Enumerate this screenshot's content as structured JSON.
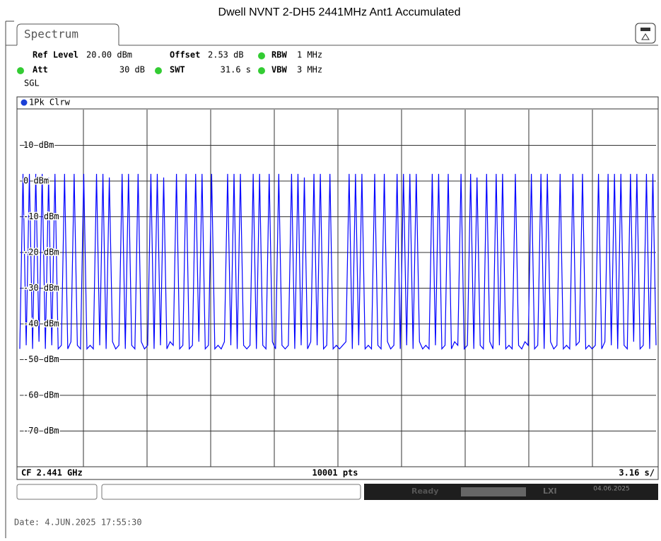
{
  "title": "Dwell NVNT 2-DH5 2441MHz Ant1 Accumulated",
  "tab": "Spectrum",
  "settings": {
    "ref_level_label": "Ref Level",
    "ref_level": "20.00 dBm",
    "offset_label": "Offset",
    "offset": "2.53 dB",
    "rbw_label": "RBW",
    "rbw": "1 MHz",
    "att_label": "Att",
    "att": "30 dB",
    "swt_label": "SWT",
    "swt": "31.6 s",
    "vbw_label": "VBW",
    "vbw": "3 MHz",
    "mode": "SGL"
  },
  "trace_label": "1Pk Clrw",
  "chart_data": {
    "type": "line",
    "color": "#0000ff",
    "ylim": [
      -80,
      20
    ],
    "yticks": [
      {
        "value": 10,
        "label": "10 dBm"
      },
      {
        "value": 0,
        "label": "0 dBm"
      },
      {
        "value": -10,
        "label": "-10 dBm"
      },
      {
        "value": -20,
        "label": "-20 dBm"
      },
      {
        "value": -30,
        "label": "-30 dBm"
      },
      {
        "value": -40,
        "label": "-40 dBm"
      },
      {
        "value": -50,
        "label": "-50 dBm"
      },
      {
        "value": -60,
        "label": "-60 dBm"
      },
      {
        "value": -70,
        "label": "-70 dBm"
      }
    ],
    "grid": true,
    "values": [
      -47,
      2,
      -46,
      2,
      -47,
      2,
      -45,
      2,
      -47,
      1,
      -46,
      2,
      -47,
      -46,
      2,
      -47,
      -45,
      2,
      -46,
      -47,
      2,
      -47,
      -46,
      -47,
      2,
      -46,
      2,
      -47,
      1,
      -45,
      -47,
      -46,
      2,
      -47,
      2,
      -46,
      -47,
      2,
      -45,
      -47,
      -46,
      2,
      -47,
      2,
      -46,
      1,
      -47,
      -45,
      -46,
      2,
      -47,
      -46,
      2,
      -47,
      -46,
      2,
      -45,
      2,
      -47,
      -46,
      2,
      -47,
      -46,
      -47,
      -45,
      2,
      -46,
      2,
      -47,
      2,
      -46,
      -47,
      -46,
      2,
      -47,
      2,
      -46,
      -47,
      2,
      -45,
      -47,
      2,
      -46,
      -47,
      -46,
      2,
      -47,
      2,
      -46,
      1,
      -47,
      -45,
      2,
      -46,
      2,
      -47,
      -46,
      2,
      -47,
      -46,
      -47,
      -46,
      -45,
      2,
      -47,
      2,
      -46,
      2,
      -47,
      -46,
      -47,
      2,
      -46,
      -47,
      2,
      -45,
      -47,
      -46,
      2,
      -47,
      2,
      -46,
      2,
      -47,
      2,
      -45,
      -47,
      -46,
      -47,
      2,
      -46,
      2,
      -47,
      -46,
      2,
      -47,
      -45,
      -46,
      2,
      -47,
      -46,
      2,
      -47,
      1,
      -46,
      -47,
      2,
      -45,
      -47,
      2,
      -46,
      2,
      -47,
      -46,
      -47,
      2,
      -46,
      -47,
      -45,
      -46,
      2,
      -47,
      -46,
      2,
      -47,
      2,
      -45,
      -47,
      -46,
      2,
      -47,
      -46,
      -47,
      2,
      -46,
      -45,
      2,
      -47,
      -46,
      -47,
      -46,
      2,
      -47,
      -45,
      2,
      -46,
      2,
      -47,
      2,
      -46,
      -47,
      2,
      -45,
      2,
      -47,
      -46,
      2,
      -47,
      2,
      -46
    ]
  },
  "footer": {
    "center_freq": "CF 2.441 GHz",
    "points": "10001 pts",
    "time_per_div": "3.16 s/"
  },
  "status": {
    "state": "Ready",
    "date": "04.06.2025"
  },
  "date_line": "Date: 4.JUN.2025  17:55:30"
}
